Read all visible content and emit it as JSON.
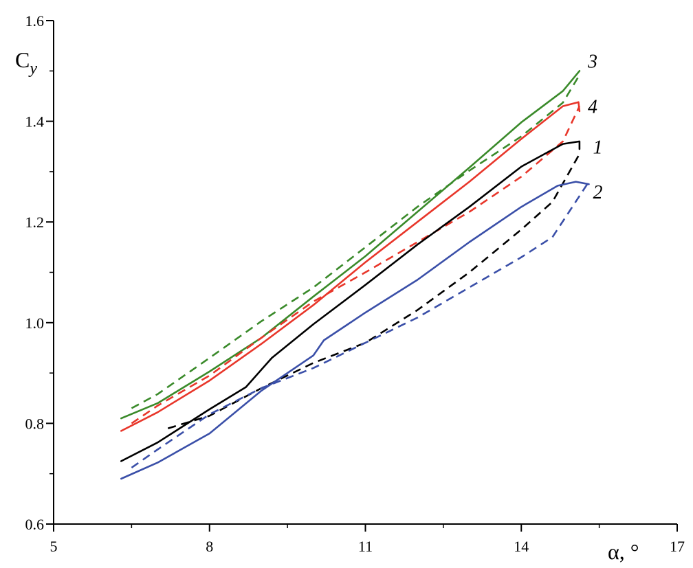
{
  "chart_data": {
    "type": "line",
    "xlabel_symbol": "α",
    "xlabel_unit": ", °",
    "ylabel_main": "C",
    "ylabel_sub": "y",
    "xlim": [
      5,
      17
    ],
    "ylim": [
      0.6,
      1.6
    ],
    "xticks": [
      5,
      8,
      11,
      14,
      17
    ],
    "yticks": [
      0.6,
      0.8,
      1.0,
      1.2,
      1.4,
      1.6
    ],
    "xtick_labels": [
      "5",
      "8",
      "11",
      "14",
      "17"
    ],
    "ytick_labels": [
      "0.6",
      "0.8",
      "1.0",
      "1.2",
      "1.4",
      "1.6"
    ],
    "x_minor_step": 1.5,
    "y_minor_step": 0.1,
    "grid": false,
    "series": [
      {
        "label": "3",
        "color": "#3a8a2a",
        "label_at": [
          15.2,
          1.52
        ],
        "solid": [
          [
            6.3,
            0.81
          ],
          [
            7,
            0.84
          ],
          [
            8,
            0.903
          ],
          [
            9,
            0.97
          ],
          [
            10,
            1.052
          ],
          [
            11,
            1.132
          ],
          [
            12,
            1.22
          ],
          [
            13,
            1.308
          ],
          [
            14,
            1.398
          ],
          [
            14.8,
            1.46
          ],
          [
            15.12,
            1.5
          ]
        ],
        "dashed": [
          [
            6.5,
            0.83
          ],
          [
            7,
            0.858
          ],
          [
            8,
            0.93
          ],
          [
            9,
            1.003
          ],
          [
            10,
            1.07
          ],
          [
            11,
            1.15
          ],
          [
            12,
            1.23
          ],
          [
            13,
            1.302
          ],
          [
            14,
            1.37
          ],
          [
            14.8,
            1.437
          ],
          [
            15.12,
            1.492
          ]
        ]
      },
      {
        "label": "4",
        "color": "#e8362a",
        "label_at": [
          15.2,
          1.43
        ],
        "solid": [
          [
            6.3,
            0.785
          ],
          [
            7,
            0.822
          ],
          [
            8,
            0.885
          ],
          [
            9,
            0.958
          ],
          [
            10,
            1.035
          ],
          [
            11,
            1.12
          ],
          [
            12,
            1.2
          ],
          [
            13,
            1.28
          ],
          [
            14,
            1.365
          ],
          [
            14.8,
            1.43
          ],
          [
            15.1,
            1.438
          ],
          [
            15.12,
            1.42
          ]
        ],
        "dashed": [
          [
            6.5,
            0.8
          ],
          [
            7,
            0.835
          ],
          [
            8,
            0.895
          ],
          [
            9,
            0.97
          ],
          [
            10,
            1.042
          ],
          [
            11,
            1.1
          ],
          [
            12,
            1.16
          ],
          [
            13,
            1.22
          ],
          [
            14,
            1.29
          ],
          [
            14.8,
            1.36
          ],
          [
            15.12,
            1.43
          ]
        ]
      },
      {
        "label": "1",
        "color": "#000000",
        "label_at": [
          15.3,
          1.35
        ],
        "solid": [
          [
            6.3,
            0.725
          ],
          [
            7,
            0.762
          ],
          [
            8,
            0.828
          ],
          [
            8.7,
            0.872
          ],
          [
            9.2,
            0.93
          ],
          [
            10,
            0.997
          ],
          [
            11,
            1.075
          ],
          [
            12,
            1.155
          ],
          [
            13,
            1.23
          ],
          [
            14,
            1.31
          ],
          [
            14.8,
            1.355
          ],
          [
            15.12,
            1.36
          ],
          [
            15.12,
            1.345
          ]
        ],
        "dashed": [
          [
            7.2,
            0.79
          ],
          [
            8,
            0.815
          ],
          [
            9,
            0.87
          ],
          [
            10,
            0.92
          ],
          [
            11,
            0.96
          ],
          [
            12,
            1.025
          ],
          [
            13,
            1.1
          ],
          [
            14,
            1.185
          ],
          [
            14.6,
            1.24
          ],
          [
            15.12,
            1.335
          ]
        ]
      },
      {
        "label": "2",
        "color": "#3a4fa8",
        "label_at": [
          15.3,
          1.26
        ],
        "solid": [
          [
            6.3,
            0.69
          ],
          [
            7,
            0.722
          ],
          [
            8,
            0.78
          ],
          [
            9,
            0.865
          ],
          [
            10,
            0.935
          ],
          [
            10.2,
            0.965
          ],
          [
            11,
            1.02
          ],
          [
            12,
            1.085
          ],
          [
            13,
            1.16
          ],
          [
            14,
            1.23
          ],
          [
            14.7,
            1.272
          ],
          [
            15.05,
            1.28
          ],
          [
            15.3,
            1.275
          ]
        ],
        "dashed": [
          [
            6.5,
            0.712
          ],
          [
            7,
            0.748
          ],
          [
            8,
            0.818
          ],
          [
            9,
            0.87
          ],
          [
            10,
            0.91
          ],
          [
            11,
            0.96
          ],
          [
            12,
            1.01
          ],
          [
            13,
            1.07
          ],
          [
            14,
            1.13
          ],
          [
            14.6,
            1.17
          ],
          [
            15.3,
            1.28
          ]
        ]
      }
    ]
  }
}
